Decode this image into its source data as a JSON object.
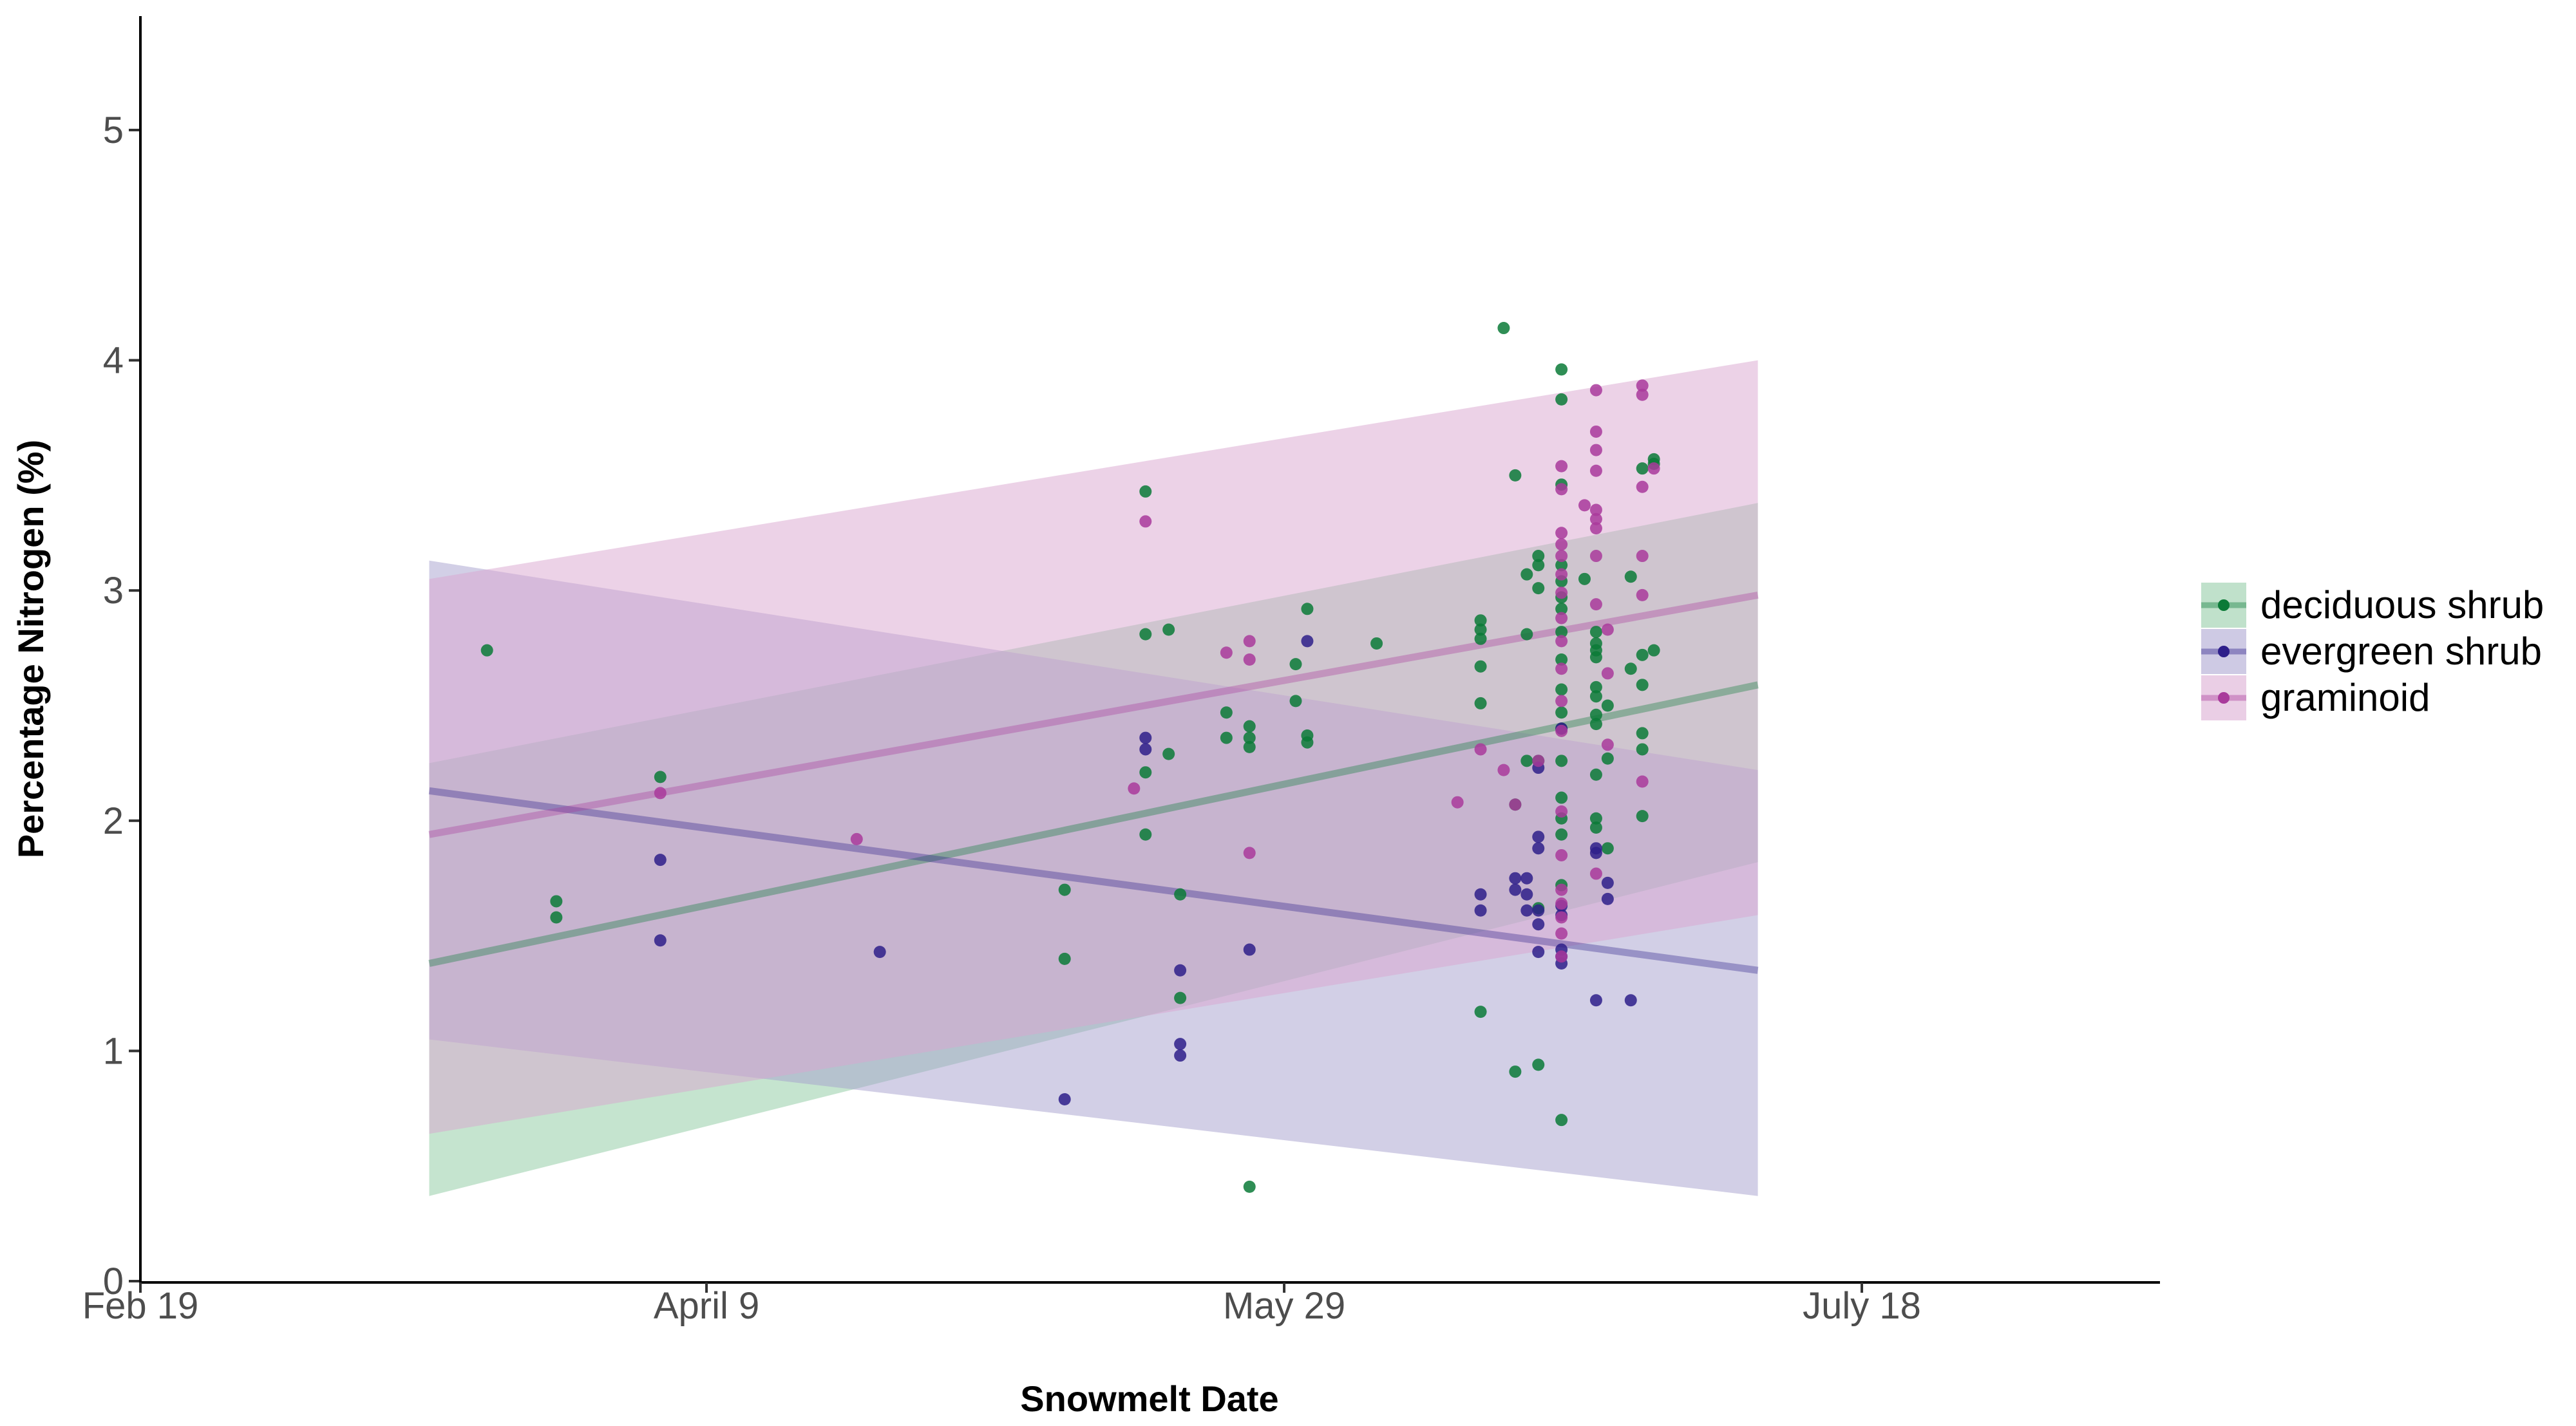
{
  "chart_data": {
    "type": "scatter",
    "title": "",
    "xlabel": "Snowmelt Date",
    "ylabel": "Percentage Nitrogen (%)",
    "x_axis": {
      "unit": "days since Feb 19",
      "range": [
        0,
        175
      ],
      "ticks": [
        {
          "value": 0,
          "label": "Feb 19"
        },
        {
          "value": 49,
          "label": "April 9"
        },
        {
          "value": 99,
          "label": "May 29"
        },
        {
          "value": 149,
          "label": "July 18"
        }
      ]
    },
    "y_axis": {
      "range": [
        0,
        5.5
      ],
      "ticks": [
        {
          "value": 0,
          "label": "0"
        },
        {
          "value": 1,
          "label": "1"
        },
        {
          "value": 2,
          "label": "2"
        },
        {
          "value": 3,
          "label": "3"
        },
        {
          "value": 4,
          "label": "4"
        },
        {
          "value": 5,
          "label": "5"
        }
      ]
    },
    "grid": false,
    "legend_position": "right",
    "series": [
      {
        "name": "deciduous shrub",
        "color": "#0b7a37",
        "ribbon_color": "#8cc9a0",
        "fit": {
          "x": [
            25,
            140
          ],
          "y": [
            1.38,
            2.59
          ]
        },
        "ribbon": {
          "x": [
            25,
            140
          ],
          "lower": [
            0.37,
            1.82
          ],
          "upper": [
            2.25,
            3.38
          ]
        },
        "points": [
          [
            30,
            2.74
          ],
          [
            36,
            1.65
          ],
          [
            36,
            1.58
          ],
          [
            45,
            2.19
          ],
          [
            80,
            1.7
          ],
          [
            80,
            1.4
          ],
          [
            87,
            3.43
          ],
          [
            87,
            2.81
          ],
          [
            87,
            2.21
          ],
          [
            87,
            1.94
          ],
          [
            89,
            2.83
          ],
          [
            89,
            2.29
          ],
          [
            90,
            1.68
          ],
          [
            90,
            1.23
          ],
          [
            94,
            2.47
          ],
          [
            94,
            2.36
          ],
          [
            96,
            2.41
          ],
          [
            96,
            2.36
          ],
          [
            96,
            2.32
          ],
          [
            96,
            0.41
          ],
          [
            100,
            2.68
          ],
          [
            100,
            2.52
          ],
          [
            101,
            2.92
          ],
          [
            101,
            2.37
          ],
          [
            101,
            2.34
          ],
          [
            107,
            2.77
          ],
          [
            116,
            2.87
          ],
          [
            116,
            2.83
          ],
          [
            116,
            2.79
          ],
          [
            116,
            2.67
          ],
          [
            116,
            2.51
          ],
          [
            116,
            1.17
          ],
          [
            118,
            4.14
          ],
          [
            119,
            3.5
          ],
          [
            119,
            2.07
          ],
          [
            119,
            0.91
          ],
          [
            120,
            3.07
          ],
          [
            120,
            2.81
          ],
          [
            120,
            2.26
          ],
          [
            121,
            3.15
          ],
          [
            121,
            3.11
          ],
          [
            121,
            3.01
          ],
          [
            121,
            2.26
          ],
          [
            121,
            1.62
          ],
          [
            121,
            0.94
          ],
          [
            123,
            3.96
          ],
          [
            123,
            3.83
          ],
          [
            123,
            3.46
          ],
          [
            123,
            3.11
          ],
          [
            123,
            3.04
          ],
          [
            123,
            2.97
          ],
          [
            123,
            2.92
          ],
          [
            123,
            2.82
          ],
          [
            123,
            2.7
          ],
          [
            123,
            2.57
          ],
          [
            123,
            2.47
          ],
          [
            123,
            2.4
          ],
          [
            123,
            2.26
          ],
          [
            123,
            2.1
          ],
          [
            123,
            2.01
          ],
          [
            123,
            1.94
          ],
          [
            123,
            1.72
          ],
          [
            123,
            0.7
          ],
          [
            125,
            3.05
          ],
          [
            126,
            2.82
          ],
          [
            126,
            2.77
          ],
          [
            126,
            2.74
          ],
          [
            126,
            2.71
          ],
          [
            126,
            2.58
          ],
          [
            126,
            2.54
          ],
          [
            126,
            2.46
          ],
          [
            126,
            2.42
          ],
          [
            126,
            2.2
          ],
          [
            126,
            2.01
          ],
          [
            126,
            1.97
          ],
          [
            127,
            2.5
          ],
          [
            127,
            2.27
          ],
          [
            127,
            1.88
          ],
          [
            129,
            3.06
          ],
          [
            129,
            2.66
          ],
          [
            130,
            3.53
          ],
          [
            130,
            2.72
          ],
          [
            130,
            2.38
          ],
          [
            130,
            2.31
          ],
          [
            130,
            2.02
          ],
          [
            130,
            2.59
          ],
          [
            131,
            3.57
          ],
          [
            131,
            3.55
          ],
          [
            131,
            2.74
          ]
        ]
      },
      {
        "name": "evergreen shrub",
        "color": "#2e1f8a",
        "ribbon_color": "#a69fce",
        "fit": {
          "x": [
            25,
            140
          ],
          "y": [
            2.13,
            1.35
          ]
        },
        "ribbon": {
          "x": [
            25,
            140
          ],
          "lower": [
            1.05,
            0.37
          ],
          "upper": [
            3.13,
            2.22
          ]
        },
        "points": [
          [
            45,
            1.83
          ],
          [
            45,
            1.48
          ],
          [
            64,
            1.43
          ],
          [
            80,
            0.79
          ],
          [
            87,
            2.36
          ],
          [
            87,
            2.31
          ],
          [
            90,
            1.35
          ],
          [
            90,
            1.03
          ],
          [
            90,
            0.98
          ],
          [
            96,
            1.44
          ],
          [
            101,
            2.78
          ],
          [
            116,
            1.68
          ],
          [
            116,
            1.61
          ],
          [
            119,
            1.75
          ],
          [
            119,
            1.7
          ],
          [
            120,
            1.75
          ],
          [
            120,
            1.68
          ],
          [
            120,
            1.61
          ],
          [
            121,
            2.23
          ],
          [
            121,
            1.93
          ],
          [
            121,
            1.88
          ],
          [
            121,
            1.61
          ],
          [
            121,
            1.55
          ],
          [
            121,
            1.43
          ],
          [
            123,
            2.4
          ],
          [
            123,
            1.63
          ],
          [
            123,
            1.59
          ],
          [
            123,
            1.44
          ],
          [
            123,
            1.41
          ],
          [
            123,
            1.38
          ],
          [
            126,
            1.88
          ],
          [
            126,
            1.86
          ],
          [
            126,
            1.22
          ],
          [
            127,
            1.73
          ],
          [
            127,
            1.66
          ],
          [
            129,
            1.22
          ]
        ]
      },
      {
        "name": "graminoid",
        "color": "#a93a9b",
        "ribbon_color": "#d9a6cf",
        "fit": {
          "x": [
            25,
            140
          ],
          "y": [
            1.94,
            2.98
          ]
        },
        "ribbon": {
          "x": [
            25,
            140
          ],
          "lower": [
            0.64,
            1.59
          ],
          "upper": [
            3.05,
            4.0
          ]
        },
        "points": [
          [
            45,
            2.12
          ],
          [
            62,
            1.92
          ],
          [
            86,
            2.14
          ],
          [
            87,
            3.3
          ],
          [
            94,
            2.73
          ],
          [
            96,
            2.78
          ],
          [
            96,
            2.7
          ],
          [
            96,
            1.86
          ],
          [
            114,
            2.08
          ],
          [
            116,
            2.31
          ],
          [
            118,
            2.22
          ],
          [
            119,
            2.07
          ],
          [
            121,
            2.26
          ],
          [
            123,
            3.54
          ],
          [
            123,
            3.44
          ],
          [
            123,
            3.25
          ],
          [
            123,
            3.2
          ],
          [
            123,
            3.15
          ],
          [
            123,
            3.07
          ],
          [
            123,
            2.99
          ],
          [
            123,
            2.88
          ],
          [
            123,
            2.78
          ],
          [
            123,
            2.66
          ],
          [
            123,
            2.52
          ],
          [
            123,
            2.39
          ],
          [
            123,
            2.04
          ],
          [
            123,
            1.85
          ],
          [
            123,
            1.7
          ],
          [
            123,
            1.64
          ],
          [
            123,
            1.58
          ],
          [
            123,
            1.51
          ],
          [
            123,
            1.41
          ],
          [
            125,
            3.37
          ],
          [
            126,
            3.87
          ],
          [
            126,
            3.69
          ],
          [
            126,
            3.61
          ],
          [
            126,
            3.52
          ],
          [
            126,
            3.35
          ],
          [
            126,
            3.31
          ],
          [
            126,
            3.27
          ],
          [
            126,
            3.15
          ],
          [
            126,
            2.94
          ],
          [
            126,
            1.77
          ],
          [
            127,
            2.83
          ],
          [
            127,
            2.64
          ],
          [
            127,
            2.33
          ],
          [
            130,
            3.89
          ],
          [
            130,
            3.85
          ],
          [
            130,
            3.45
          ],
          [
            130,
            3.15
          ],
          [
            130,
            2.98
          ],
          [
            130,
            2.17
          ],
          [
            131,
            3.53
          ]
        ]
      }
    ]
  }
}
